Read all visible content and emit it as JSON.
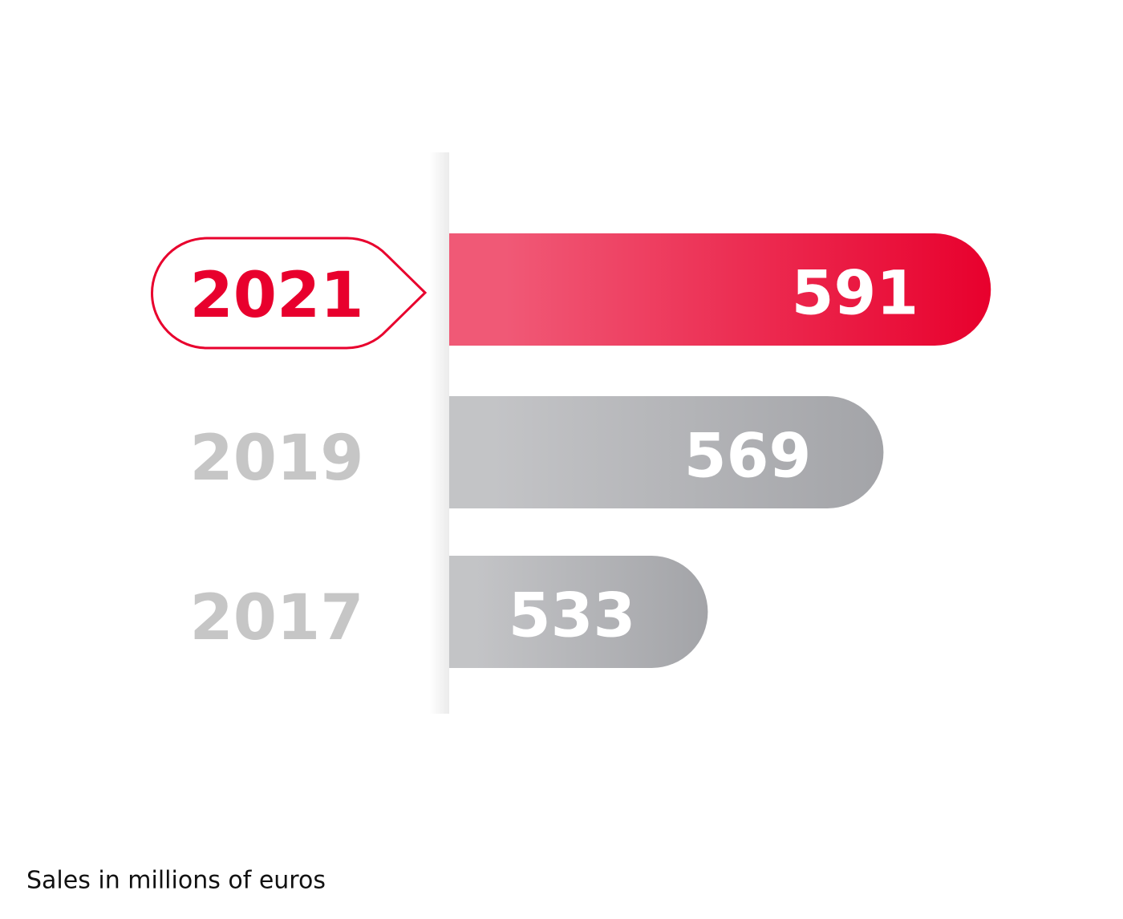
{
  "chart_data": {
    "type": "bar",
    "orientation": "horizontal",
    "categories": [
      "2021",
      "2019",
      "2017"
    ],
    "values": [
      591,
      569,
      533
    ],
    "colors": [
      "#e8002d",
      "#a3a4a8",
      "#a3a4a8"
    ],
    "label_colors": [
      "#e8002d",
      "#c6c6c6",
      "#c6c6c6"
    ],
    "xlim": [
      480,
      600
    ],
    "caption": "Sales in millions of euros"
  }
}
